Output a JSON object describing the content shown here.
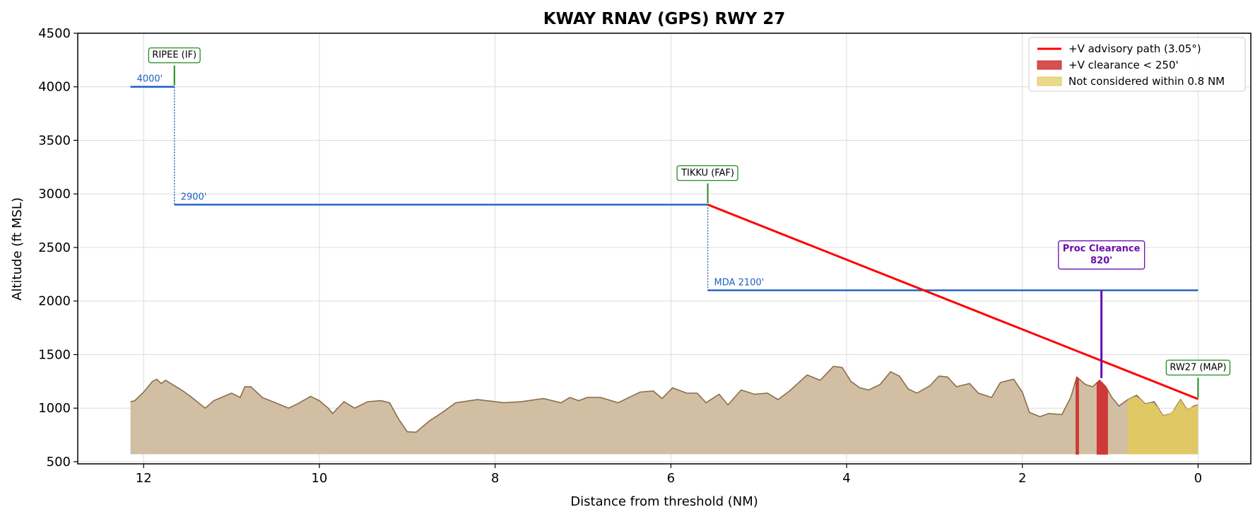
{
  "chart_data": {
    "type": "line",
    "title": "KWAY  RNAV (GPS) RWY 27",
    "xlabel": "Distance from threshold (NM)",
    "ylabel": "Altitude (ft MSL)",
    "xlim": [
      12.75,
      -0.6
    ],
    "ylim": [
      480,
      4500
    ],
    "x_inverted": true,
    "xticks": [
      12,
      10,
      8,
      6,
      4,
      2,
      0
    ],
    "yticks": [
      500,
      1000,
      1500,
      2000,
      2500,
      3000,
      3500,
      4000,
      4500
    ],
    "grid": true,
    "legend_position": "top-right",
    "colors": {
      "advisory": "#ff0000",
      "segment": "#1f5fbf",
      "terrain_fill": "#d2bfa3",
      "terrain_edge": "#8a6e4b",
      "low_clearance": "#cc3333",
      "not_considered": "#e3c95a",
      "waypoint": "#228b22",
      "proc_clearance": "#6a0dad"
    },
    "legend": [
      {
        "label": "+V advisory path (3.05°)",
        "kind": "line",
        "color": "#ff0000"
      },
      {
        "label": "+V clearance < 250'",
        "kind": "patch",
        "color": "#cc3333"
      },
      {
        "label": "Not considered within 0.8 NM",
        "kind": "patch",
        "color": "#e3c95a"
      }
    ],
    "segments": [
      {
        "from_nm": 12.15,
        "to_nm": 11.65,
        "alt_ft": 4000,
        "label": "4000'"
      },
      {
        "from_nm": 11.65,
        "to_nm": 5.58,
        "alt_ft": 2900,
        "label": "2900'"
      },
      {
        "from_nm": 5.58,
        "to_nm": 0,
        "alt_ft": 2100,
        "label": "MDA 2100'"
      }
    ],
    "advisory_path": {
      "from": [
        5.58,
        2900
      ],
      "to": [
        0,
        1085
      ]
    },
    "waypoints": [
      {
        "name": "RIPEE (IF)",
        "nm": 11.65,
        "alt_ft": 4000
      },
      {
        "name": "TIKKU (FAF)",
        "nm": 5.58,
        "alt_ft": 2900
      },
      {
        "name": "RW27 (MAP)",
        "nm": 0,
        "alt_ft": 1085
      }
    ],
    "proc_clearance": {
      "line1": "Proc Clearance",
      "line2": "820'",
      "nm": 1.1,
      "from_ft": 1280,
      "to_ft": 2100
    },
    "low_clearance_zones": [
      [
        1.39,
        1.36
      ],
      [
        1.15,
        1.03
      ]
    ],
    "not_considered_zone": [
      0.8,
      0
    ],
    "terrain": [
      [
        12.15,
        1060
      ],
      [
        12.1,
        1070
      ],
      [
        12.0,
        1150
      ],
      [
        11.9,
        1250
      ],
      [
        11.85,
        1270
      ],
      [
        11.8,
        1230
      ],
      [
        11.75,
        1260
      ],
      [
        11.65,
        1210
      ],
      [
        11.55,
        1160
      ],
      [
        11.45,
        1100
      ],
      [
        11.3,
        1000
      ],
      [
        11.2,
        1070
      ],
      [
        11.0,
        1140
      ],
      [
        10.9,
        1100
      ],
      [
        10.85,
        1200
      ],
      [
        10.78,
        1200
      ],
      [
        10.65,
        1100
      ],
      [
        10.5,
        1050
      ],
      [
        10.35,
        1000
      ],
      [
        10.25,
        1040
      ],
      [
        10.1,
        1110
      ],
      [
        10.0,
        1070
      ],
      [
        9.9,
        1000
      ],
      [
        9.85,
        950
      ],
      [
        9.72,
        1060
      ],
      [
        9.6,
        1000
      ],
      [
        9.45,
        1060
      ],
      [
        9.3,
        1070
      ],
      [
        9.2,
        1050
      ],
      [
        9.1,
        900
      ],
      [
        9.0,
        780
      ],
      [
        8.9,
        775
      ],
      [
        8.75,
        880
      ],
      [
        8.6,
        960
      ],
      [
        8.45,
        1050
      ],
      [
        8.2,
        1080
      ],
      [
        7.9,
        1050
      ],
      [
        7.7,
        1060
      ],
      [
        7.45,
        1090
      ],
      [
        7.25,
        1050
      ],
      [
        7.15,
        1100
      ],
      [
        7.05,
        1070
      ],
      [
        6.95,
        1100
      ],
      [
        6.8,
        1100
      ],
      [
        6.6,
        1050
      ],
      [
        6.35,
        1150
      ],
      [
        6.2,
        1160
      ],
      [
        6.1,
        1090
      ],
      [
        5.98,
        1190
      ],
      [
        5.82,
        1140
      ],
      [
        5.7,
        1140
      ],
      [
        5.6,
        1050
      ],
      [
        5.45,
        1130
      ],
      [
        5.35,
        1030
      ],
      [
        5.2,
        1170
      ],
      [
        5.05,
        1130
      ],
      [
        4.9,
        1140
      ],
      [
        4.78,
        1080
      ],
      [
        4.65,
        1160
      ],
      [
        4.45,
        1310
      ],
      [
        4.3,
        1260
      ],
      [
        4.15,
        1390
      ],
      [
        4.05,
        1380
      ],
      [
        3.95,
        1250
      ],
      [
        3.85,
        1190
      ],
      [
        3.75,
        1170
      ],
      [
        3.62,
        1220
      ],
      [
        3.5,
        1340
      ],
      [
        3.4,
        1300
      ],
      [
        3.3,
        1180
      ],
      [
        3.2,
        1140
      ],
      [
        3.05,
        1210
      ],
      [
        2.95,
        1300
      ],
      [
        2.85,
        1290
      ],
      [
        2.75,
        1200
      ],
      [
        2.6,
        1230
      ],
      [
        2.5,
        1140
      ],
      [
        2.35,
        1100
      ],
      [
        2.25,
        1240
      ],
      [
        2.1,
        1270
      ],
      [
        2.0,
        1150
      ],
      [
        1.92,
        960
      ],
      [
        1.8,
        920
      ],
      [
        1.7,
        950
      ],
      [
        1.55,
        940
      ],
      [
        1.45,
        1100
      ],
      [
        1.38,
        1290
      ],
      [
        1.28,
        1220
      ],
      [
        1.2,
        1200
      ],
      [
        1.12,
        1260
      ],
      [
        1.05,
        1200
      ],
      [
        0.98,
        1100
      ],
      [
        0.9,
        1020
      ],
      [
        0.8,
        1080
      ],
      [
        0.7,
        1120
      ],
      [
        0.6,
        1040
      ],
      [
        0.5,
        1060
      ],
      [
        0.4,
        930
      ],
      [
        0.3,
        950
      ],
      [
        0.2,
        1080
      ],
      [
        0.12,
        980
      ],
      [
        0.05,
        1020
      ],
      [
        0.0,
        1030
      ]
    ]
  }
}
